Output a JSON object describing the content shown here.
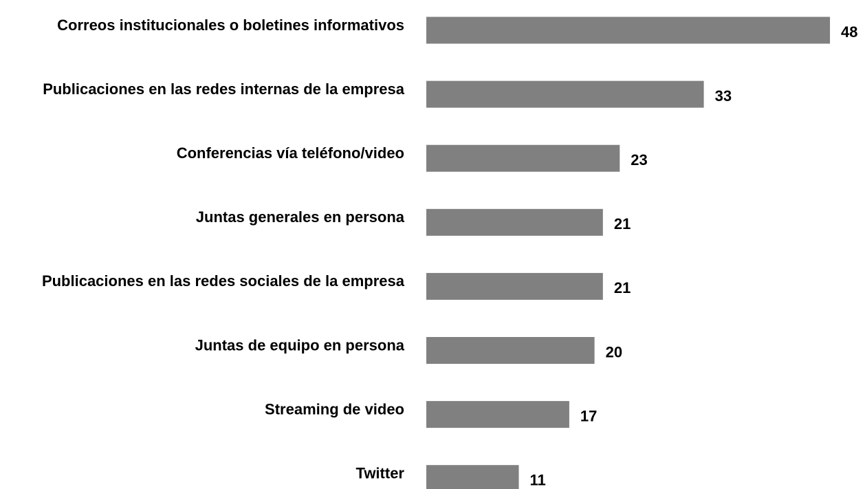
{
  "chart_data": {
    "type": "bar",
    "orientation": "horizontal",
    "categories": [
      "Correos institucionales o boletines informativos",
      "Publicaciones en las redes internas de la empresa",
      "Conferencias vía teléfono/video",
      "Juntas generales en persona",
      "Publicaciones en las redes sociales de la empresa",
      "Juntas de equipo en persona",
      "Streaming de video",
      "Twitter"
    ],
    "values": [
      48,
      33,
      23,
      21,
      21,
      20,
      17,
      11
    ],
    "color": "#808080"
  }
}
